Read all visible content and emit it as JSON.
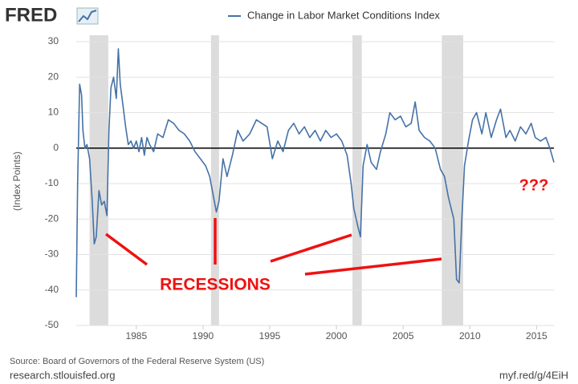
{
  "chart_data": {
    "type": "line",
    "logo": "FRED",
    "y_label": "(Index Points)",
    "source": "Source: Board of Governors of the Federal Reserve System (US)",
    "footer_left": "research.stlouisfed.org",
    "footer_right": "myf.red/g/4EiH",
    "annotations": [
      "RECESSIONS",
      "???"
    ],
    "xlim": [
      1980.5,
      2016.3
    ],
    "xticks": [
      1985,
      1990,
      1995,
      2000,
      2005,
      2010,
      2015
    ],
    "ylim": [
      -50,
      30
    ],
    "yticks": [
      -50,
      -40,
      -30,
      -20,
      -10,
      0,
      10,
      20,
      30
    ],
    "grid": true,
    "recessions": [
      [
        1981.5,
        1982.9
      ],
      [
        1990.6,
        1991.2
      ],
      [
        2001.2,
        2001.9
      ],
      [
        2007.9,
        2009.5
      ]
    ],
    "x": [
      1980.5,
      1980.6,
      1980.75,
      1980.9,
      1981.0,
      1981.15,
      1981.3,
      1981.5,
      1981.7,
      1981.85,
      1982.0,
      1982.2,
      1982.4,
      1982.6,
      1982.8,
      1982.95,
      1983.1,
      1983.3,
      1983.5,
      1983.65,
      1983.8,
      1984.0,
      1984.2,
      1984.4,
      1984.6,
      1984.8,
      1985.0,
      1985.2,
      1985.4,
      1985.6,
      1985.8,
      1986.0,
      1986.3,
      1986.6,
      1987.0,
      1987.4,
      1987.8,
      1988.2,
      1988.6,
      1989.0,
      1989.4,
      1989.8,
      1990.2,
      1990.5,
      1990.8,
      1991.0,
      1991.2,
      1991.5,
      1991.8,
      1992.2,
      1992.6,
      1993.0,
      1993.5,
      1994.0,
      1994.4,
      1994.8,
      1995.2,
      1995.6,
      1996.0,
      1996.4,
      1996.8,
      1997.2,
      1997.6,
      1998.0,
      1998.4,
      1998.8,
      1999.2,
      1999.6,
      2000.0,
      2000.4,
      2000.8,
      2001.1,
      2001.3,
      2001.6,
      2001.8,
      2002.0,
      2002.3,
      2002.6,
      2003.0,
      2003.3,
      2003.7,
      2004.0,
      2004.4,
      2004.8,
      2005.2,
      2005.6,
      2005.9,
      2006.2,
      2006.6,
      2007.0,
      2007.4,
      2007.8,
      2008.1,
      2008.4,
      2008.8,
      2009.0,
      2009.2,
      2009.4,
      2009.6,
      2009.9,
      2010.2,
      2010.5,
      2010.9,
      2011.2,
      2011.6,
      2012.0,
      2012.3,
      2012.7,
      2013.0,
      2013.4,
      2013.8,
      2014.2,
      2014.6,
      2014.9,
      2015.3,
      2015.7,
      2016.0,
      2016.3
    ],
    "series": [
      {
        "name": "Change in Labor Market Conditions Index",
        "color": "#4572a7",
        "values": [
          -42,
          -10,
          18,
          15,
          5,
          0,
          1,
          -3,
          -15,
          -27,
          -25,
          -12,
          -16,
          -15,
          -19,
          5,
          17,
          20,
          14,
          28,
          18,
          12,
          6,
          1,
          2,
          0,
          2,
          -1,
          3,
          -2,
          3,
          1,
          -1,
          4,
          3,
          8,
          7,
          5,
          4,
          2,
          -1,
          -3,
          -5,
          -8,
          -14,
          -18,
          -15,
          -3,
          -8,
          -2,
          5,
          2,
          4,
          8,
          7,
          6,
          -3,
          2,
          -1,
          5,
          7,
          4,
          6,
          3,
          5,
          2,
          5,
          3,
          4,
          2,
          -2,
          -10,
          -17,
          -22,
          -25,
          -5,
          1,
          -4,
          -6,
          -1,
          4,
          10,
          8,
          9,
          6,
          7,
          13,
          5,
          3,
          2,
          0,
          -6,
          -8,
          -14,
          -20,
          -37,
          -38,
          -20,
          -5,
          2,
          8,
          10,
          4,
          10,
          3,
          8,
          11,
          3,
          5,
          2,
          6,
          4,
          7,
          3,
          2,
          3,
          0,
          -4
        ]
      }
    ]
  }
}
